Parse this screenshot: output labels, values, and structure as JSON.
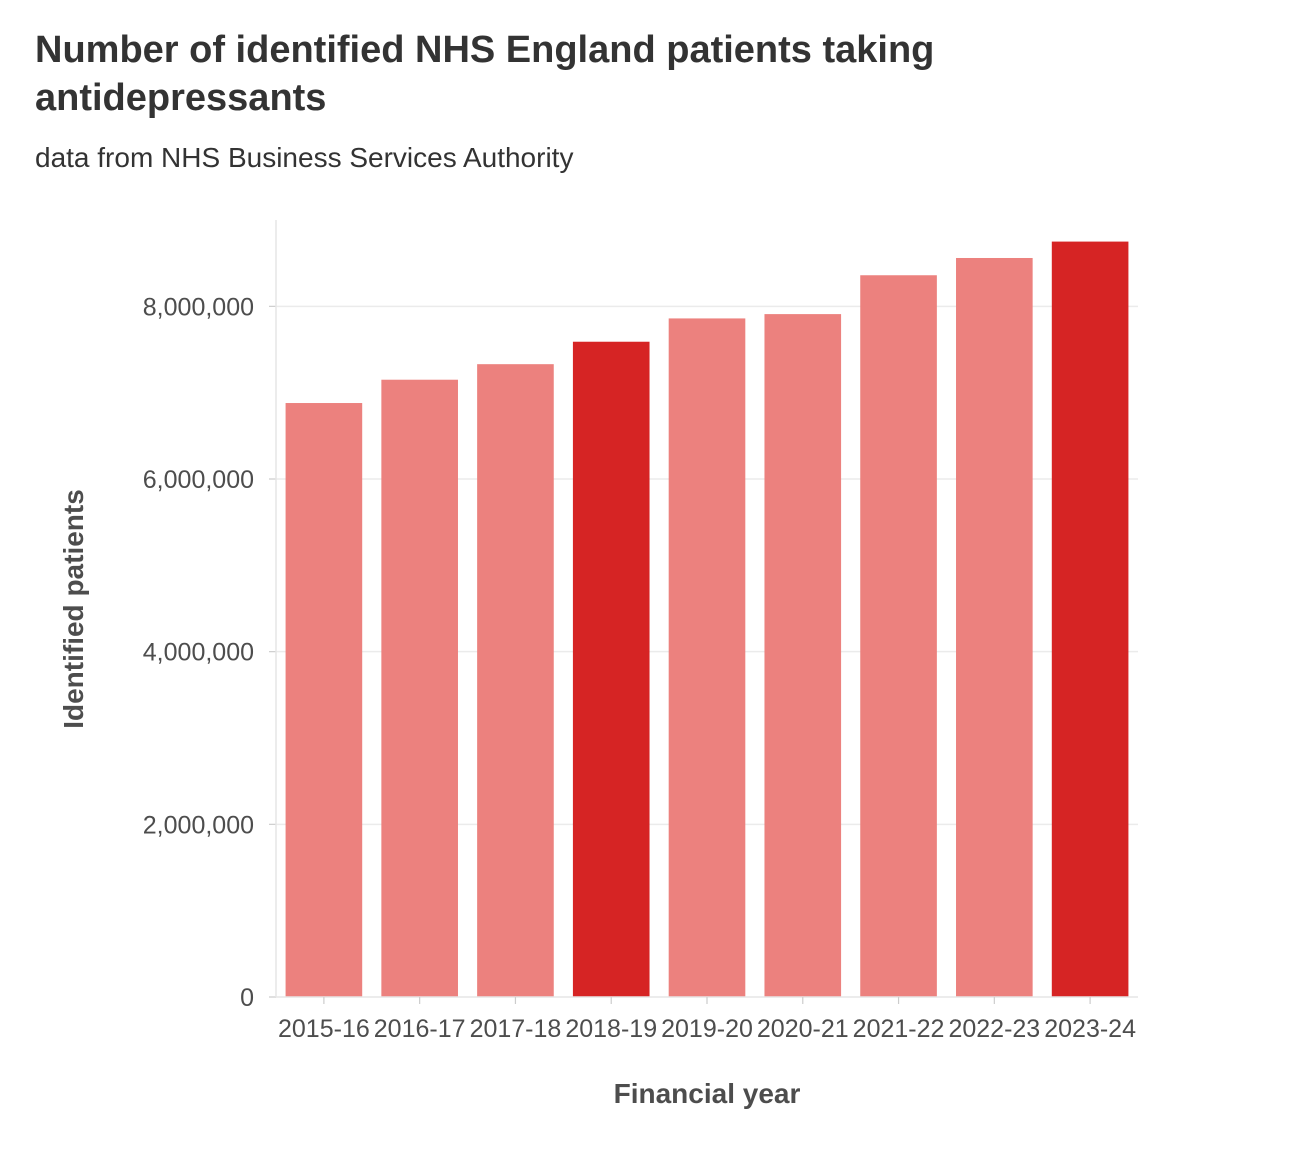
{
  "header": {
    "title": "Number of identified NHS England patients taking antidepressants",
    "subtitle": "data from NHS Business Services Authority"
  },
  "colors": {
    "bar_normal": "#ec817e",
    "bar_highlight": "#d62424",
    "grid": "#ebebeb",
    "text": "#333333"
  },
  "chart_data": {
    "type": "bar",
    "title": "Number of identified NHS England patients taking antidepressants",
    "subtitle": "data from NHS Business Services Authority",
    "xlabel": "Financial year",
    "ylabel": "Identified patients",
    "categories": [
      "2015-16",
      "2016-17",
      "2017-18",
      "2018-19",
      "2019-20",
      "2020-21",
      "2021-22",
      "2022-23",
      "2023-24"
    ],
    "values": [
      6880000,
      7150000,
      7330000,
      7590000,
      7860000,
      7910000,
      8360000,
      8560000,
      8750000
    ],
    "highlighted": [
      false,
      false,
      false,
      true,
      false,
      false,
      false,
      false,
      true
    ],
    "ylim": [
      0,
      9000000
    ],
    "yticks": [
      0,
      2000000,
      4000000,
      6000000,
      8000000
    ],
    "ytick_labels": [
      "0",
      "2,000,000",
      "4,000,000",
      "6,000,000",
      "8,000,000"
    ],
    "grid": true,
    "legend": "none"
  }
}
